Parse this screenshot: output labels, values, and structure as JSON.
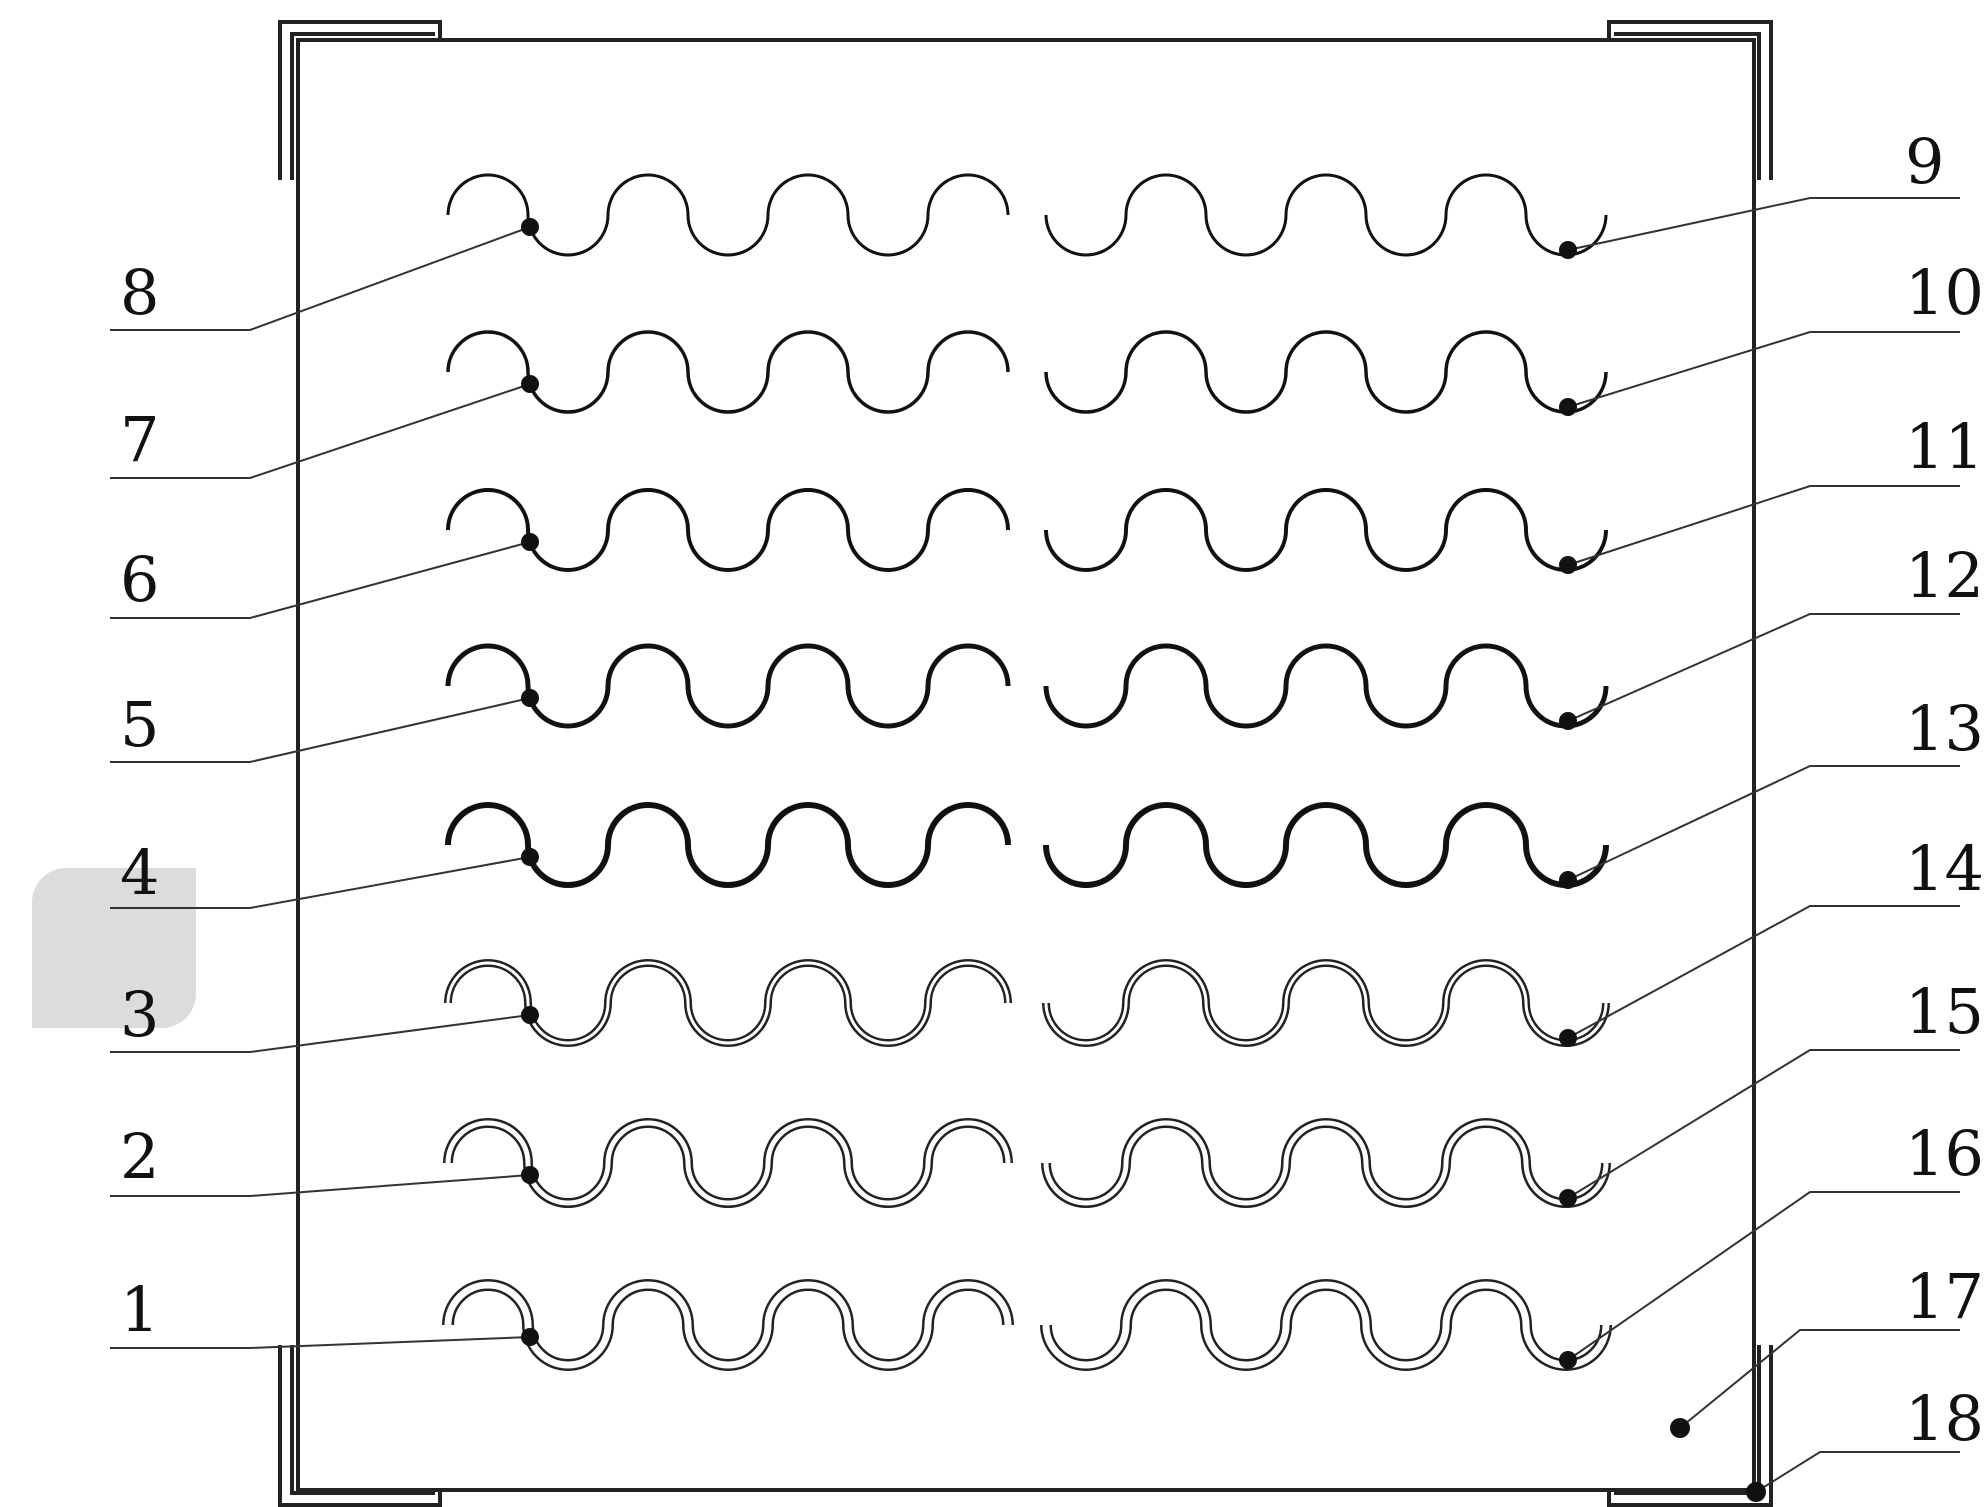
{
  "diagram": {
    "labels_left": [
      "8",
      "7",
      "6",
      "5",
      "4",
      "3",
      "2",
      "1"
    ],
    "labels_right": [
      "9",
      "10",
      "11",
      "12",
      "13",
      "14",
      "15",
      "16",
      "17",
      "18"
    ]
  },
  "colors": {
    "ink": "#111111",
    "background": "#ffffff",
    "marker": "#dcdcdc"
  }
}
